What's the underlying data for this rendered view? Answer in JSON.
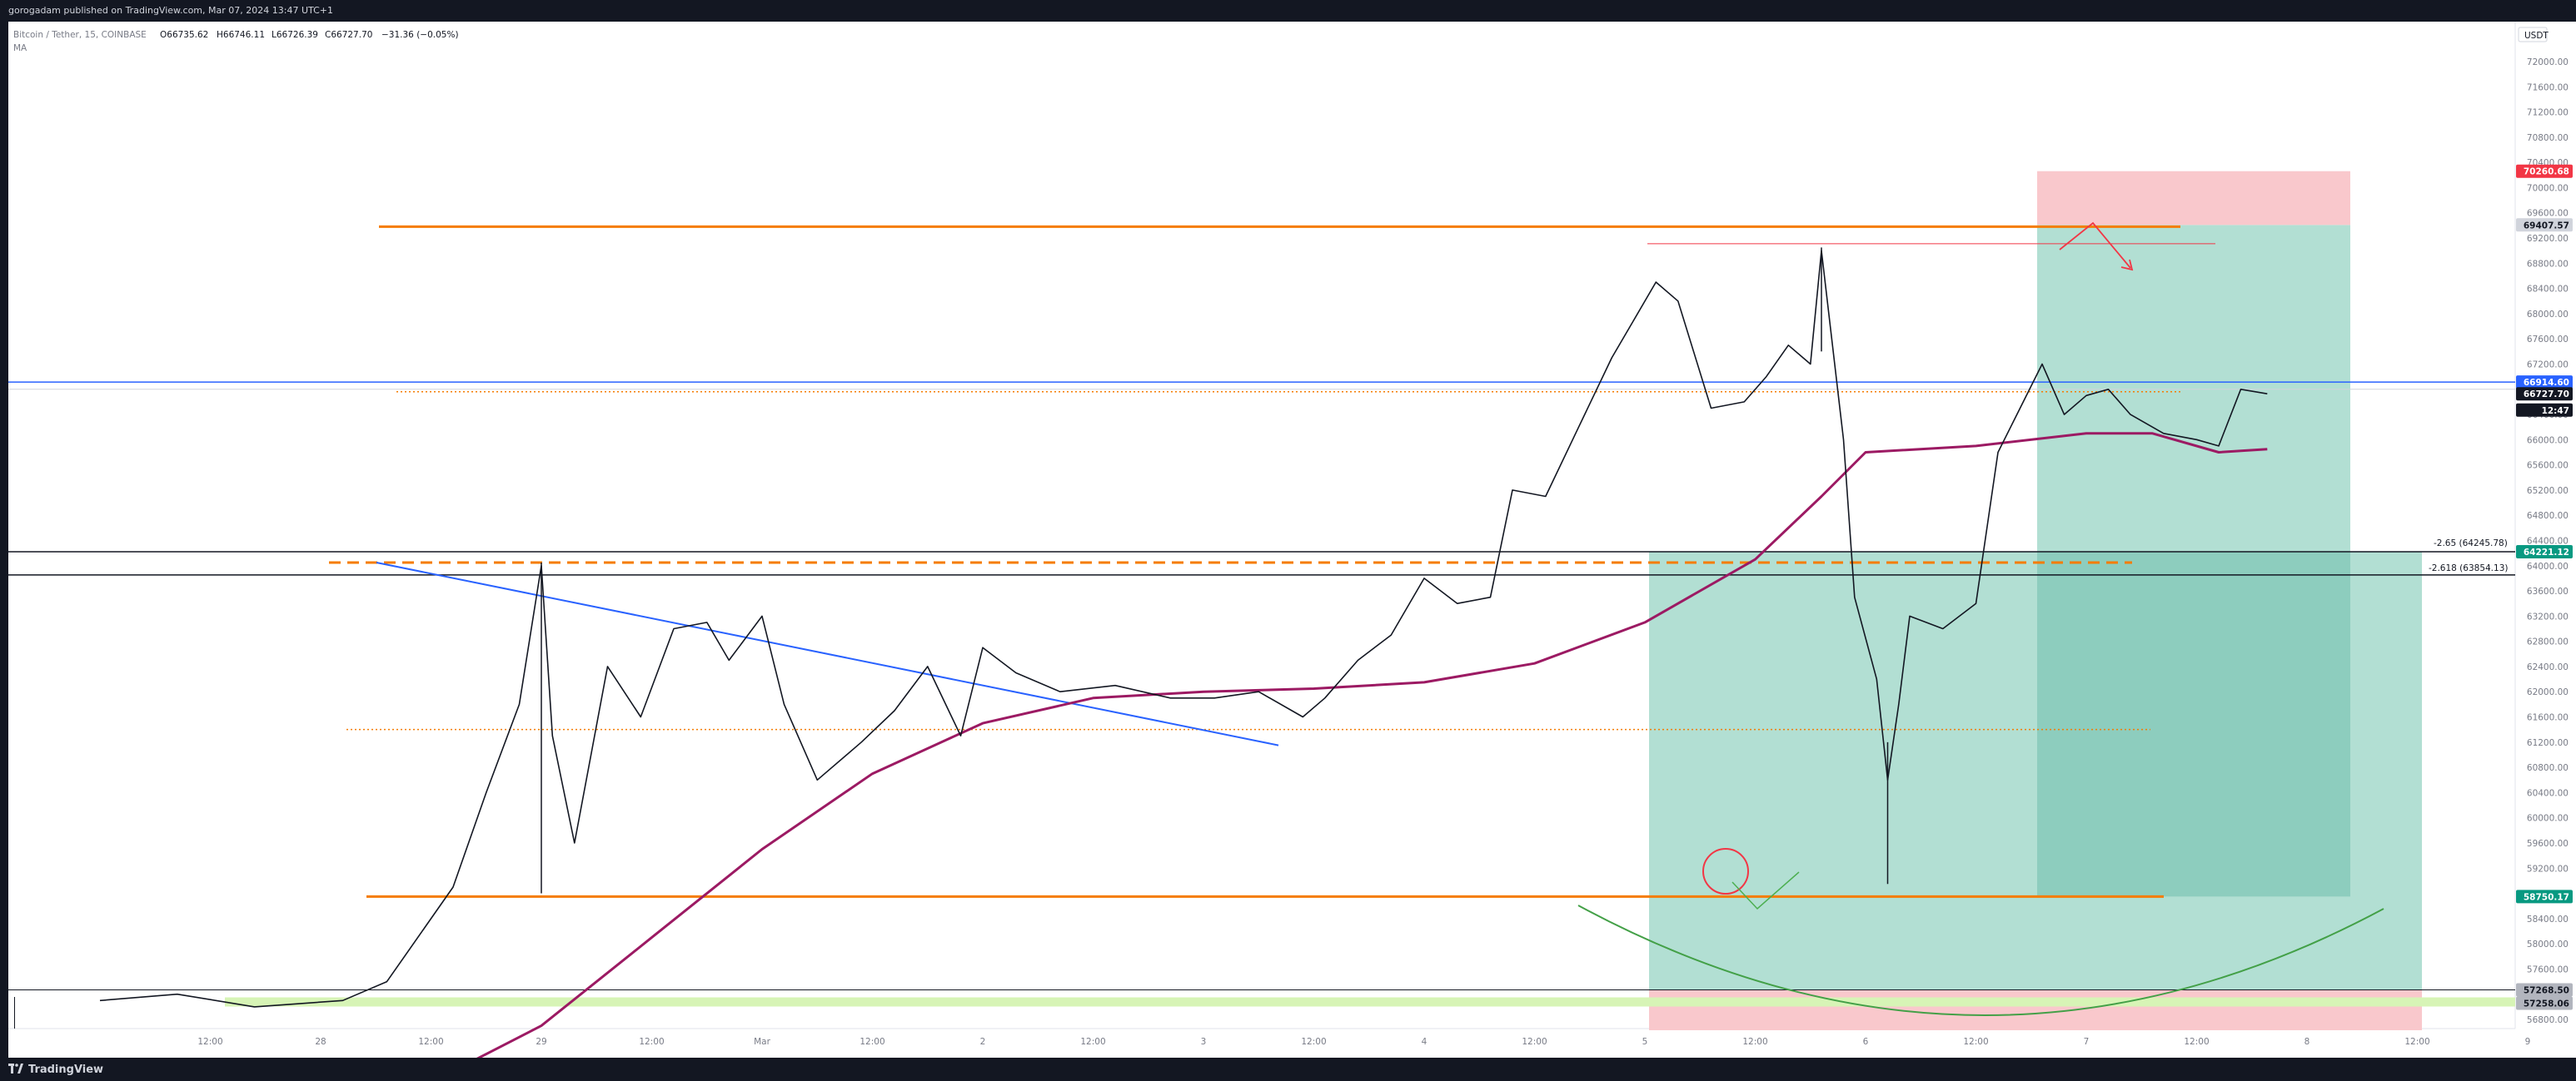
{
  "header": {
    "published": "gorogadam published on TradingView.com, Mar 07, 2024 13:47 UTC+1"
  },
  "legend": {
    "symbol": "Bitcoin / Tether, 15, COINBASE",
    "open": "O66735.62",
    "high": "H66746.11",
    "low": "L66726.39",
    "close": "C66727.70",
    "change": "−31.36 (−0.05%)",
    "indicator": "MA"
  },
  "footer": {
    "brand": "TradingView"
  },
  "currency": "USDT",
  "annotations": {
    "fib1": "-2.65 (64245.78)",
    "fib2": "-2.618 (63854.13)"
  },
  "chart_data": {
    "type": "line",
    "title": "Bitcoin / Tether, 15, COINBASE",
    "y_ticks": [
      72000,
      71600,
      71200,
      70800,
      70400,
      70000,
      69600,
      69200,
      68800,
      68400,
      68000,
      67600,
      67200,
      66800,
      66400,
      66000,
      65600,
      65200,
      64800,
      64400,
      64000,
      63600,
      63200,
      62800,
      62400,
      62000,
      61600,
      61200,
      60800,
      60400,
      60000,
      59600,
      59200,
      58800,
      58400,
      58000,
      57600,
      57200,
      56800
    ],
    "ylim": [
      56700,
      72300
    ],
    "x_ticks": [
      {
        "t": 0.5,
        "label": "12:00"
      },
      {
        "t": 1.0,
        "label": "28"
      },
      {
        "t": 1.5,
        "label": "12:00"
      },
      {
        "t": 2.0,
        "label": "29"
      },
      {
        "t": 2.5,
        "label": "12:00"
      },
      {
        "t": 3.0,
        "label": "Mar"
      },
      {
        "t": 3.5,
        "label": "12:00"
      },
      {
        "t": 4.0,
        "label": "2"
      },
      {
        "t": 4.5,
        "label": "12:00"
      },
      {
        "t": 5.0,
        "label": "3"
      },
      {
        "t": 5.5,
        "label": "12:00"
      },
      {
        "t": 6.0,
        "label": "4"
      },
      {
        "t": 6.5,
        "label": "12:00"
      },
      {
        "t": 7.0,
        "label": "5"
      },
      {
        "t": 7.5,
        "label": "12:00"
      },
      {
        "t": 8.0,
        "label": "6"
      },
      {
        "t": 8.5,
        "label": "12:00"
      },
      {
        "t": 9.0,
        "label": "7"
      },
      {
        "t": 9.5,
        "label": "12:00"
      },
      {
        "t": 10.0,
        "label": "8"
      },
      {
        "t": 10.5,
        "label": "12:00"
      },
      {
        "t": 11.0,
        "label": "9"
      }
    ],
    "price_series": [
      [
        0.0,
        57100
      ],
      [
        0.35,
        57200
      ],
      [
        0.7,
        57000
      ],
      [
        1.1,
        57100
      ],
      [
        1.3,
        57400
      ],
      [
        1.6,
        58900
      ],
      [
        1.75,
        60400
      ],
      [
        1.9,
        61800
      ],
      [
        2.0,
        64000
      ],
      [
        2.05,
        61300
      ],
      [
        2.15,
        59600
      ],
      [
        2.3,
        62400
      ],
      [
        2.45,
        61600
      ],
      [
        2.6,
        63000
      ],
      [
        2.75,
        63100
      ],
      [
        2.85,
        62500
      ],
      [
        3.0,
        63200
      ],
      [
        3.1,
        61800
      ],
      [
        3.25,
        60600
      ],
      [
        3.45,
        61200
      ],
      [
        3.6,
        61700
      ],
      [
        3.75,
        62400
      ],
      [
        3.9,
        61300
      ],
      [
        4.0,
        62700
      ],
      [
        4.15,
        62300
      ],
      [
        4.35,
        62000
      ],
      [
        4.6,
        62100
      ],
      [
        4.85,
        61900
      ],
      [
        5.05,
        61900
      ],
      [
        5.25,
        62000
      ],
      [
        5.45,
        61600
      ],
      [
        5.55,
        61900
      ],
      [
        5.7,
        62500
      ],
      [
        5.85,
        62900
      ],
      [
        6.0,
        63800
      ],
      [
        6.15,
        63400
      ],
      [
        6.3,
        63500
      ],
      [
        6.4,
        65200
      ],
      [
        6.55,
        65100
      ],
      [
        6.7,
        66200
      ],
      [
        6.85,
        67300
      ],
      [
        6.95,
        67900
      ],
      [
        7.05,
        68500
      ],
      [
        7.15,
        68200
      ],
      [
        7.3,
        66500
      ],
      [
        7.45,
        66600
      ],
      [
        7.55,
        67000
      ],
      [
        7.65,
        67500
      ],
      [
        7.75,
        67200
      ],
      [
        7.8,
        69000
      ],
      [
        7.9,
        66000
      ],
      [
        7.95,
        63500
      ],
      [
        8.05,
        62200
      ],
      [
        8.1,
        60600
      ],
      [
        8.15,
        61800
      ],
      [
        8.2,
        63200
      ],
      [
        8.35,
        63000
      ],
      [
        8.5,
        63400
      ],
      [
        8.6,
        65800
      ],
      [
        8.7,
        66500
      ],
      [
        8.8,
        67200
      ],
      [
        8.9,
        66400
      ],
      [
        9.0,
        66700
      ],
      [
        9.1,
        66800
      ],
      [
        9.2,
        66400
      ],
      [
        9.35,
        66100
      ],
      [
        9.5,
        66000
      ],
      [
        9.6,
        65900
      ],
      [
        9.7,
        66800
      ],
      [
        9.82,
        66728
      ]
    ],
    "ma_series": [
      [
        1.5,
        55800
      ],
      [
        2.0,
        56700
      ],
      [
        2.5,
        58100
      ],
      [
        3.0,
        59500
      ],
      [
        3.5,
        60700
      ],
      [
        4.0,
        61500
      ],
      [
        4.5,
        61900
      ],
      [
        5.0,
        62000
      ],
      [
        5.5,
        62050
      ],
      [
        6.0,
        62150
      ],
      [
        6.5,
        62450
      ],
      [
        7.0,
        63100
      ],
      [
        7.5,
        64100
      ],
      [
        7.8,
        65100
      ],
      [
        8.0,
        65800
      ],
      [
        8.5,
        65900
      ],
      [
        9.0,
        66100
      ],
      [
        9.3,
        66100
      ],
      [
        9.6,
        65800
      ],
      [
        9.82,
        65850
      ]
    ],
    "price_labels": [
      {
        "value": "70260.68",
        "price": 70260.68,
        "bg": "#f23645",
        "fg": "#ffffff"
      },
      {
        "value": "69407.57",
        "price": 69407.57,
        "bg": "#d1d4dc",
        "fg": "#131722"
      },
      {
        "value": "66914.60",
        "price": 66914.6,
        "bg": "#2962ff",
        "fg": "#ffffff"
      },
      {
        "value": "66727.70",
        "price": 66727.7,
        "bg": "#131722",
        "fg": "#ffffff"
      },
      {
        "value": "12:47",
        "price": 66470,
        "bg": "#131722",
        "fg": "#ffffff"
      },
      {
        "value": "64221.12",
        "price": 64221.12,
        "bg": "#089981",
        "fg": "#ffffff"
      },
      {
        "value": "58750.17",
        "price": 58750.17,
        "bg": "#089981",
        "fg": "#ffffff"
      },
      {
        "value": "57268.50",
        "price": 57268.5,
        "bg": "#b2b5be",
        "fg": "#131722"
      },
      {
        "value": "57258.06",
        "price": 57058.06,
        "bg": "#b2b5be",
        "fg": "#131722"
      }
    ],
    "levels": {
      "orange_top": 69380,
      "red_top_short": 69110,
      "blue_h": 66914.6,
      "dotted_orange_hi": 66760,
      "black_1": 64221.12,
      "black_2": 63854.13,
      "dashed_orange": 64050,
      "dotted_orange_lo": 61400,
      "orange_bottom": 58750.17,
      "black_bottom": 57268.5,
      "green_band": 57100
    },
    "colors": {
      "ma": "#9c1a63",
      "price": "#131722",
      "orange": "#f57c00",
      "blue": "#2962ff",
      "position_green": "#b2dfd3",
      "position_green_dark": "#8dcdbe",
      "position_red": "#f9c8cc",
      "green_band": "#d7f4b6"
    }
  }
}
